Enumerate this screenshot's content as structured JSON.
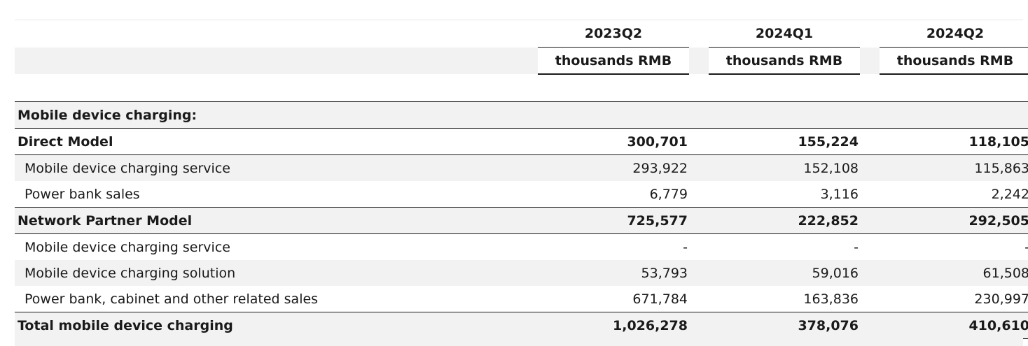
{
  "table": {
    "columns": [
      {
        "period": "2023Q2",
        "unit": "thousands RMB"
      },
      {
        "period": "2024Q1",
        "unit": "thousands RMB"
      },
      {
        "period": "2024Q2",
        "unit": "thousands RMB"
      }
    ],
    "rows": [
      {
        "label": "Mobile device charging:",
        "values": [
          "",
          "",
          ""
        ],
        "style": "bold",
        "indent": false,
        "shaded": true
      },
      {
        "label": "Direct Model",
        "values": [
          "300,701",
          "155,224",
          "118,105"
        ],
        "style": "bold",
        "indent": false,
        "shaded": false
      },
      {
        "label": "Mobile device charging service",
        "values": [
          "293,922",
          "152,108",
          "115,863"
        ],
        "style": "normal",
        "indent": true,
        "shaded": true
      },
      {
        "label": "Power bank sales",
        "values": [
          "6,779",
          "3,116",
          "2,242"
        ],
        "style": "normal",
        "indent": true,
        "shaded": false
      },
      {
        "label": "Network Partner Model",
        "values": [
          "725,577",
          "222,852",
          "292,505"
        ],
        "style": "bold",
        "indent": false,
        "shaded": true
      },
      {
        "label": "Mobile device charging service",
        "values": [
          "-",
          "-",
          "-"
        ],
        "style": "normal",
        "indent": true,
        "shaded": false
      },
      {
        "label": "Mobile device charging solution",
        "values": [
          "53,793",
          "59,016",
          "61,508"
        ],
        "style": "normal",
        "indent": true,
        "shaded": true
      },
      {
        "label": "Power bank, cabinet and other related sales",
        "values": [
          "671,784",
          "163,836",
          "230,997"
        ],
        "style": "normal",
        "indent": true,
        "shaded": false
      },
      {
        "label": "Total mobile device charging",
        "values": [
          "1,026,278",
          "378,076",
          "410,610"
        ],
        "style": "bold",
        "indent": false,
        "shaded": true
      }
    ]
  }
}
